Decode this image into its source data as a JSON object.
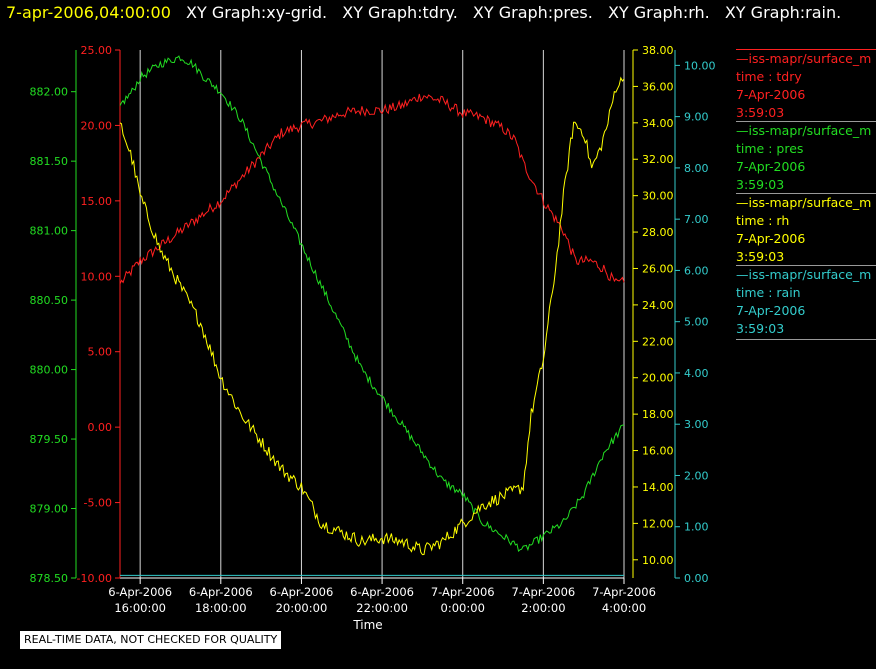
{
  "header": {
    "timestamp": "7-apr-2006,04:00:00",
    "graphs": [
      "XY Graph:xy-grid.",
      "XY Graph:tdry.",
      "XY Graph:pres.",
      "XY Graph:rh.",
      "XY Graph:rain."
    ]
  },
  "legend": [
    {
      "source": "—iss-mapr/surface_m",
      "var": "time : tdry",
      "date": "7-Apr-2006",
      "time": "3:59:03",
      "color": "#ff2020"
    },
    {
      "source": "—iss-mapr/surface_m",
      "var": "time : pres",
      "date": "7-Apr-2006",
      "time": "3:59:03",
      "color": "#22dd22"
    },
    {
      "source": "—iss-mapr/surface_m",
      "var": "time : rh",
      "date": "7-Apr-2006",
      "time": "3:59:03",
      "color": "#ffff00"
    },
    {
      "source": "—iss-mapr/surface_m",
      "var": "time : rain",
      "date": "7-Apr-2006",
      "time": "3:59:03",
      "color": "#33cccc"
    }
  ],
  "disclaimer": "REAL-TIME DATA, NOT CHECKED FOR QUALITY",
  "chart_data": {
    "type": "line",
    "xlabel": "Time",
    "x_hours_range": [
      15.5,
      28.0
    ],
    "x_ticks": [
      {
        "hour": 16,
        "date": "6-Apr-2006",
        "time": "16:00:00"
      },
      {
        "hour": 18,
        "date": "6-Apr-2006",
        "time": "18:00:00"
      },
      {
        "hour": 20,
        "date": "6-Apr-2006",
        "time": "20:00:00"
      },
      {
        "hour": 22,
        "date": "6-Apr-2006",
        "time": "22:00:00"
      },
      {
        "hour": 24,
        "date": "7-Apr-2006",
        "time": "0:00:00"
      },
      {
        "hour": 26,
        "date": "7-Apr-2006",
        "time": "2:00:00"
      },
      {
        "hour": 28,
        "date": "7-Apr-2006",
        "time": "4:00:00"
      }
    ],
    "grid": "vertical",
    "axes": [
      {
        "id": "pres",
        "side": "left-outer",
        "color": "#22dd22",
        "range": [
          878.5,
          882.3
        ],
        "ticks": [
          "878.50",
          "879.00",
          "879.50",
          "880.00",
          "880.50",
          "881.00",
          "881.50",
          "882.00"
        ]
      },
      {
        "id": "tdry",
        "side": "left-inner",
        "color": "#ff2020",
        "range": [
          -10,
          25
        ],
        "ticks": [
          "-10.00",
          "-5.00",
          "0.00",
          "5.00",
          "10.00",
          "15.00",
          "20.00",
          "25.00"
        ]
      },
      {
        "id": "rh",
        "side": "right-inner",
        "color": "#ffff00",
        "range": [
          9.0,
          38.0
        ],
        "ticks": [
          "10.00",
          "12.00",
          "14.00",
          "16.00",
          "18.00",
          "20.00",
          "22.00",
          "24.00",
          "26.00",
          "28.00",
          "30.00",
          "32.00",
          "34.00",
          "36.00",
          "38.00"
        ]
      },
      {
        "id": "rain",
        "side": "right-outer",
        "color": "#33cccc",
        "range": [
          0.0,
          10.3
        ],
        "ticks": [
          "0.00",
          "1.00",
          "2.00",
          "3.00",
          "4.00",
          "5.00",
          "6.00",
          "7.00",
          "8.00",
          "9.00",
          "10.00"
        ]
      }
    ],
    "series": [
      {
        "axis": "tdry",
        "color": "#ff2020",
        "noise": 0.35,
        "points": [
          [
            15.5,
            9.5
          ],
          [
            16.0,
            11.0
          ],
          [
            16.5,
            12.0
          ],
          [
            17.0,
            13.0
          ],
          [
            17.5,
            14.0
          ],
          [
            18.0,
            15.0
          ],
          [
            18.5,
            16.5
          ],
          [
            19.0,
            18.0
          ],
          [
            19.5,
            19.5
          ],
          [
            20.0,
            20.0
          ],
          [
            20.5,
            20.3
          ],
          [
            21.0,
            20.8
          ],
          [
            21.5,
            21.0
          ],
          [
            22.0,
            21.0
          ],
          [
            22.5,
            21.3
          ],
          [
            23.0,
            22.0
          ],
          [
            23.5,
            21.6
          ],
          [
            24.0,
            20.8
          ],
          [
            24.5,
            20.5
          ],
          [
            25.0,
            19.8
          ],
          [
            25.3,
            19.0
          ],
          [
            25.5,
            17.5
          ],
          [
            26.0,
            15.0
          ],
          [
            26.5,
            13.0
          ],
          [
            26.8,
            11.0
          ],
          [
            27.2,
            11.0
          ],
          [
            27.5,
            10.5
          ],
          [
            27.8,
            9.5
          ],
          [
            28.0,
            9.6
          ]
        ]
      },
      {
        "axis": "pres",
        "color": "#22dd22",
        "noise": 0.03,
        "points": [
          [
            15.5,
            881.9
          ],
          [
            15.8,
            882.0
          ],
          [
            16.0,
            882.1
          ],
          [
            16.5,
            882.2
          ],
          [
            17.0,
            882.25
          ],
          [
            17.3,
            882.2
          ],
          [
            17.6,
            882.1
          ],
          [
            18.0,
            882.0
          ],
          [
            18.5,
            881.8
          ],
          [
            19.0,
            881.5
          ],
          [
            19.5,
            881.2
          ],
          [
            20.0,
            880.9
          ],
          [
            20.5,
            880.6
          ],
          [
            21.0,
            880.3
          ],
          [
            21.5,
            880.0
          ],
          [
            22.0,
            879.8
          ],
          [
            22.5,
            879.6
          ],
          [
            23.0,
            879.4
          ],
          [
            23.5,
            879.2
          ],
          [
            24.0,
            879.1
          ],
          [
            24.5,
            878.9
          ],
          [
            25.0,
            878.8
          ],
          [
            25.5,
            878.7
          ],
          [
            26.0,
            878.8
          ],
          [
            26.5,
            878.9
          ],
          [
            27.0,
            879.1
          ],
          [
            27.5,
            879.4
          ],
          [
            28.0,
            879.6
          ]
        ]
      },
      {
        "axis": "rh",
        "color": "#ffff00",
        "noise": 0.35,
        "points": [
          [
            15.5,
            34.0
          ],
          [
            15.8,
            32.0
          ],
          [
            16.0,
            30.0
          ],
          [
            16.5,
            27.0
          ],
          [
            17.0,
            25.0
          ],
          [
            17.5,
            23.0
          ],
          [
            18.0,
            20.0
          ],
          [
            18.5,
            18.0
          ],
          [
            19.0,
            16.5
          ],
          [
            19.5,
            15.0
          ],
          [
            20.0,
            14.0
          ],
          [
            20.5,
            12.0
          ],
          [
            21.0,
            11.5
          ],
          [
            21.5,
            11.0
          ],
          [
            22.0,
            11.2
          ],
          [
            22.5,
            11.0
          ],
          [
            23.0,
            10.5
          ],
          [
            23.5,
            11.0
          ],
          [
            24.0,
            12.0
          ],
          [
            24.5,
            13.0
          ],
          [
            25.0,
            13.5
          ],
          [
            25.5,
            14.0
          ],
          [
            25.7,
            18.0
          ],
          [
            26.0,
            21.0
          ],
          [
            26.3,
            26.0
          ],
          [
            26.5,
            30.0
          ],
          [
            26.75,
            34.0
          ],
          [
            27.0,
            33.5
          ],
          [
            27.2,
            31.5
          ],
          [
            27.4,
            32.5
          ],
          [
            27.6,
            34.0
          ],
          [
            27.8,
            36.0
          ],
          [
            28.0,
            36.4
          ]
        ]
      },
      {
        "axis": "rain",
        "color": "#33cccc",
        "noise": 0,
        "points": [
          [
            15.5,
            0.05
          ],
          [
            28.0,
            0.05
          ]
        ]
      }
    ]
  }
}
